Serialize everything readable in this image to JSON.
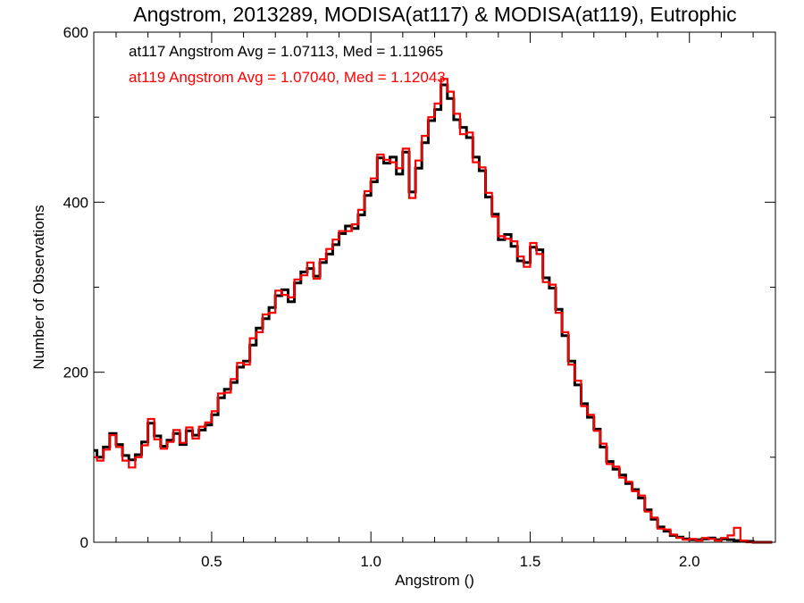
{
  "chart_data": {
    "type": "line",
    "step": true,
    "title": "Angstrom, 2013289, MODISA(at117) & MODISA(at119), Eutrophic",
    "xlabel": "Angstrom ()",
    "ylabel": "Number of Observations",
    "xlim": [
      0.13,
      2.27
    ],
    "ylim": [
      0,
      600
    ],
    "xticks": [
      0.5,
      1.0,
      1.5,
      2.0
    ],
    "xtick_labels": [
      "0.5",
      "1.0",
      "1.5",
      "2.0"
    ],
    "yticks": [
      0,
      200,
      400,
      600
    ],
    "ytick_labels": [
      "0",
      "200",
      "400",
      "600"
    ],
    "x_minor_step": 0.1,
    "y_minor_step": 100,
    "annotations": [
      {
        "text": "at117 Angstrom Avg = 1.07113, Med = 1.11965",
        "color": "#000000"
      },
      {
        "text": "at119 Angstrom Avg = 1.07040, Med = 1.12043",
        "color": "#ff0000"
      }
    ],
    "series": [
      {
        "color": "#000000",
        "x": [
          0.13,
          0.15,
          0.17,
          0.19,
          0.21,
          0.23,
          0.25,
          0.27,
          0.29,
          0.31,
          0.33,
          0.35,
          0.37,
          0.39,
          0.41,
          0.43,
          0.45,
          0.47,
          0.49,
          0.51,
          0.53,
          0.55,
          0.57,
          0.59,
          0.61,
          0.63,
          0.65,
          0.67,
          0.69,
          0.71,
          0.73,
          0.75,
          0.77,
          0.79,
          0.81,
          0.83,
          0.85,
          0.87,
          0.89,
          0.91,
          0.93,
          0.95,
          0.97,
          0.99,
          1.01,
          1.03,
          1.05,
          1.07,
          1.09,
          1.11,
          1.13,
          1.15,
          1.17,
          1.19,
          1.21,
          1.23,
          1.25,
          1.27,
          1.29,
          1.31,
          1.33,
          1.35,
          1.37,
          1.39,
          1.41,
          1.43,
          1.45,
          1.47,
          1.49,
          1.51,
          1.53,
          1.55,
          1.57,
          1.59,
          1.61,
          1.63,
          1.65,
          1.67,
          1.69,
          1.71,
          1.73,
          1.75,
          1.77,
          1.79,
          1.81,
          1.83,
          1.85,
          1.87,
          1.89,
          1.91,
          1.93,
          1.95,
          1.97,
          1.99,
          2.01,
          2.03,
          2.05,
          2.07,
          2.09,
          2.11,
          2.13,
          2.15,
          2.17,
          2.19,
          2.21,
          2.23,
          2.25
        ],
        "values": [
          108,
          100,
          112,
          128,
          115,
          102,
          97,
          103,
          118,
          140,
          125,
          113,
          120,
          128,
          115,
          131,
          126,
          132,
          138,
          150,
          170,
          180,
          188,
          206,
          213,
          232,
          252,
          263,
          276,
          290,
          297,
          283,
          305,
          318,
          322,
          313,
          329,
          339,
          350,
          363,
          372,
          369,
          385,
          408,
          424,
          452,
          446,
          453,
          433,
          459,
          412,
          440,
          470,
          496,
          509,
          538,
          522,
          497,
          488,
          476,
          453,
          437,
          406,
          386,
          356,
          362,
          348,
          331,
          329,
          347,
          344,
          311,
          299,
          274,
          243,
          213,
          185,
          163,
          147,
          133,
          112,
          95,
          86,
          79,
          69,
          62,
          52,
          38,
          27,
          18,
          13,
          8,
          6,
          4,
          3,
          3,
          4,
          5,
          3,
          4,
          3,
          2,
          1,
          1,
          0,
          0,
          0
        ]
      },
      {
        "color": "#ff0000",
        "x": [
          0.13,
          0.15,
          0.17,
          0.19,
          0.21,
          0.23,
          0.25,
          0.27,
          0.29,
          0.31,
          0.33,
          0.35,
          0.37,
          0.39,
          0.41,
          0.43,
          0.45,
          0.47,
          0.49,
          0.51,
          0.53,
          0.55,
          0.57,
          0.59,
          0.61,
          0.63,
          0.65,
          0.67,
          0.69,
          0.71,
          0.73,
          0.75,
          0.77,
          0.79,
          0.81,
          0.83,
          0.85,
          0.87,
          0.89,
          0.91,
          0.93,
          0.95,
          0.97,
          0.99,
          1.01,
          1.03,
          1.05,
          1.07,
          1.09,
          1.11,
          1.13,
          1.15,
          1.17,
          1.19,
          1.21,
          1.23,
          1.25,
          1.27,
          1.29,
          1.31,
          1.33,
          1.35,
          1.37,
          1.39,
          1.41,
          1.43,
          1.45,
          1.47,
          1.49,
          1.51,
          1.53,
          1.55,
          1.57,
          1.59,
          1.61,
          1.63,
          1.65,
          1.67,
          1.69,
          1.71,
          1.73,
          1.75,
          1.77,
          1.79,
          1.81,
          1.83,
          1.85,
          1.87,
          1.89,
          1.91,
          1.93,
          1.95,
          1.97,
          1.99,
          2.01,
          2.03,
          2.05,
          2.07,
          2.09,
          2.11,
          2.13,
          2.15,
          2.17,
          2.19,
          2.21,
          2.23,
          2.25
        ],
        "values": [
          100,
          96,
          109,
          126,
          112,
          96,
          88,
          100,
          114,
          145,
          121,
          110,
          118,
          132,
          117,
          135,
          122,
          136,
          141,
          154,
          175,
          176,
          192,
          211,
          209,
          240,
          247,
          268,
          270,
          296,
          291,
          288,
          309,
          314,
          329,
          310,
          333,
          345,
          356,
          366,
          366,
          374,
          391,
          413,
          428,
          456,
          450,
          447,
          440,
          463,
          405,
          449,
          478,
          500,
          516,
          545,
          530,
          504,
          480,
          482,
          447,
          441,
          411,
          383,
          360,
          357,
          354,
          336,
          324,
          352,
          339,
          306,
          303,
          270,
          247,
          209,
          190,
          160,
          150,
          131,
          116,
          92,
          89,
          76,
          71,
          60,
          55,
          36,
          29,
          16,
          15,
          9,
          5,
          3,
          4,
          2,
          5,
          4,
          2,
          5,
          8,
          17,
          2,
          0,
          0,
          0,
          0
        ]
      }
    ]
  }
}
